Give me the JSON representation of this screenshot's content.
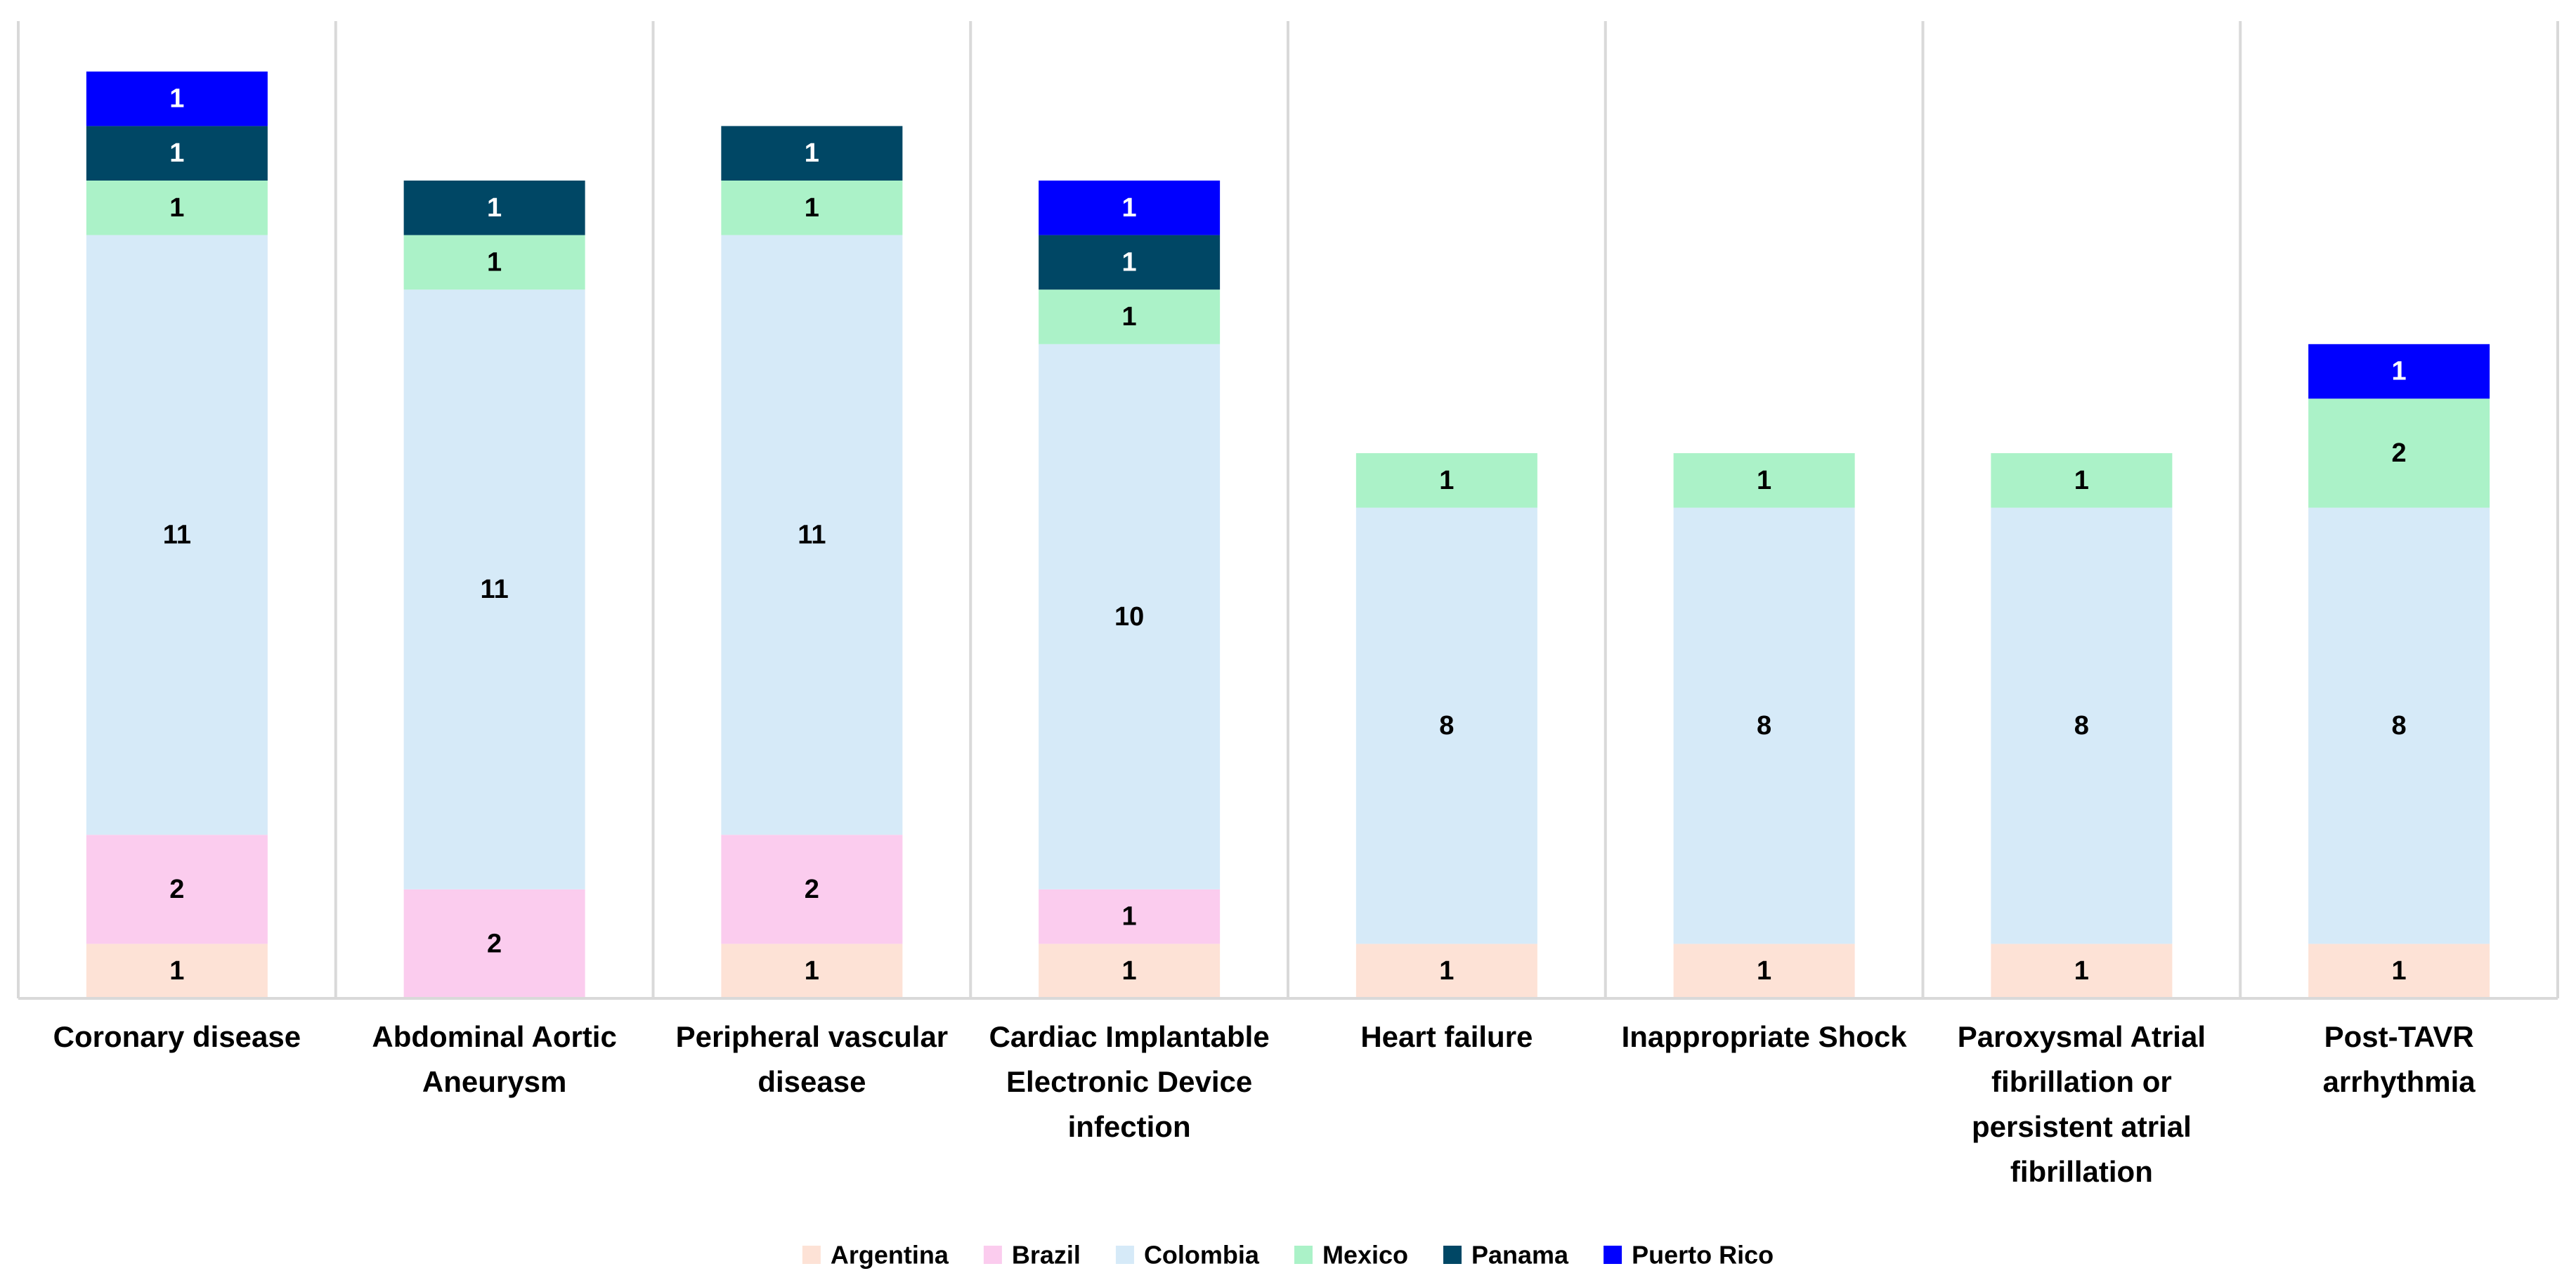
{
  "chart_data": {
    "type": "bar",
    "stacked": true,
    "title": "",
    "xlabel": "",
    "ylabel": "",
    "ylim": [
      0,
      18
    ],
    "grid": false,
    "category_separators": true,
    "legend_position": "bottom",
    "categories": [
      "Coronary disease",
      "Abdominal Aortic Aneurysm",
      "Peripheral vascular disease",
      "Cardiac Implantable Electronic Device infection",
      "Heart failure",
      "Inappropriate Shock",
      "Paroxysmal Atrial fibrillation or persistent atrial fibrillation",
      "Post-TAVR arrhythmia"
    ],
    "category_lines": [
      [
        "Coronary disease"
      ],
      [
        "Abdominal Aortic",
        "Aneurysm"
      ],
      [
        "Peripheral vascular",
        "disease"
      ],
      [
        "Cardiac Implantable",
        "Electronic Device",
        "infection"
      ],
      [
        "Heart failure"
      ],
      [
        "Inappropriate Shock"
      ],
      [
        "Paroxysmal Atrial",
        "fibrillation or",
        "persistent atrial",
        "fibrillation"
      ],
      [
        "Post-TAVR",
        "arrhythmia"
      ]
    ],
    "series": [
      {
        "name": "Argentina",
        "color": "#FDE2D6",
        "label_color": "#000000",
        "values": [
          1,
          0,
          1,
          1,
          1,
          1,
          1,
          1
        ]
      },
      {
        "name": "Brazil",
        "color": "#FBCCEE",
        "label_color": "#000000",
        "values": [
          2,
          2,
          2,
          1,
          0,
          0,
          0,
          0
        ]
      },
      {
        "name": "Colombia",
        "color": "#D6EAF8",
        "label_color": "#000000",
        "values": [
          11,
          11,
          11,
          10,
          8,
          8,
          8,
          8
        ]
      },
      {
        "name": "Mexico",
        "color": "#ABF2C8",
        "label_color": "#000000",
        "values": [
          1,
          1,
          1,
          1,
          1,
          1,
          1,
          2
        ]
      },
      {
        "name": "Panama",
        "color": "#004765",
        "label_color": "#ffffff",
        "values": [
          1,
          1,
          1,
          1,
          0,
          0,
          0,
          0
        ]
      },
      {
        "name": "Puerto Rico",
        "color": "#0000FF",
        "label_color": "#ffffff",
        "values": [
          1,
          0,
          0,
          1,
          0,
          0,
          0,
          1
        ]
      }
    ]
  }
}
